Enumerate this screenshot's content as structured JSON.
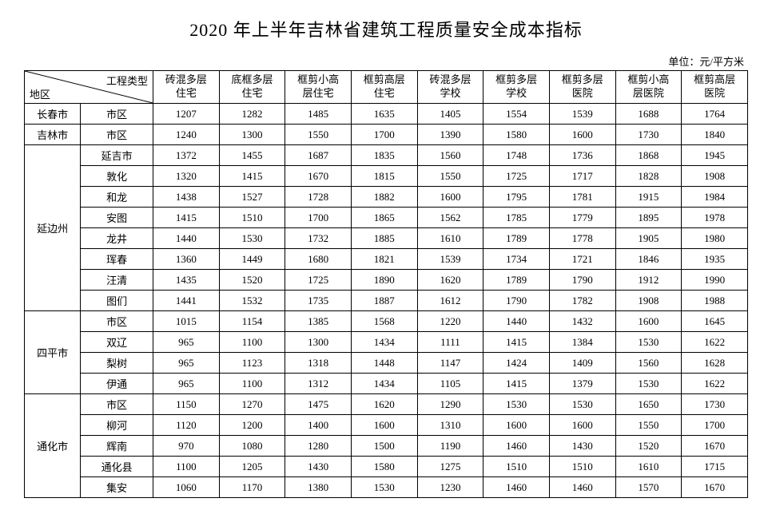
{
  "title": "2020 年上半年吉林省建筑工程质量安全成本指标",
  "unit": "单位：元/平方米",
  "diag": {
    "top": "工程类型",
    "bottom": "地区"
  },
  "columns": [
    "砖混多层\n住宅",
    "底框多层\n住宅",
    "框剪小高\n层住宅",
    "框剪高层\n住宅",
    "砖混多层\n学校",
    "框剪多层\n学校",
    "框剪多层\n医院",
    "框剪小高\n层医院",
    "框剪高层\n医院"
  ],
  "groups": [
    {
      "region": "长春市",
      "rows": [
        {
          "sub": "市区",
          "vals": [
            1207,
            1282,
            1485,
            1635,
            1405,
            1554,
            1539,
            1688,
            1764
          ]
        }
      ]
    },
    {
      "region": "吉林市",
      "rows": [
        {
          "sub": "市区",
          "vals": [
            1240,
            1300,
            1550,
            1700,
            1390,
            1580,
            1600,
            1730,
            1840
          ]
        }
      ]
    },
    {
      "region": "延边州",
      "rows": [
        {
          "sub": "延吉市",
          "vals": [
            1372,
            1455,
            1687,
            1835,
            1560,
            1748,
            1736,
            1868,
            1945
          ]
        },
        {
          "sub": "敦化",
          "vals": [
            1320,
            1415,
            1670,
            1815,
            1550,
            1725,
            1717,
            1828,
            1908
          ]
        },
        {
          "sub": "和龙",
          "vals": [
            1438,
            1527,
            1728,
            1882,
            1600,
            1795,
            1781,
            1915,
            1984
          ]
        },
        {
          "sub": "安图",
          "vals": [
            1415,
            1510,
            1700,
            1865,
            1562,
            1785,
            1779,
            1895,
            1978
          ]
        },
        {
          "sub": "龙井",
          "vals": [
            1440,
            1530,
            1732,
            1885,
            1610,
            1789,
            1778,
            1905,
            1980
          ]
        },
        {
          "sub": "珲春",
          "vals": [
            1360,
            1449,
            1680,
            1821,
            1539,
            1734,
            1721,
            1846,
            1935
          ]
        },
        {
          "sub": "汪清",
          "vals": [
            1435,
            1520,
            1725,
            1890,
            1620,
            1789,
            1790,
            1912,
            1990
          ]
        },
        {
          "sub": "图们",
          "vals": [
            1441,
            1532,
            1735,
            1887,
            1612,
            1790,
            1782,
            1908,
            1988
          ]
        }
      ]
    },
    {
      "region": "四平市",
      "rows": [
        {
          "sub": "市区",
          "vals": [
            1015,
            1154,
            1385,
            1568,
            1220,
            1440,
            1432,
            1600,
            1645
          ]
        },
        {
          "sub": "双辽",
          "vals": [
            965,
            1100,
            1300,
            1434,
            1111,
            1415,
            1384,
            1530,
            1622
          ]
        },
        {
          "sub": "梨树",
          "vals": [
            965,
            1123,
            1318,
            1448,
            1147,
            1424,
            1409,
            1560,
            1628
          ]
        },
        {
          "sub": "伊通",
          "vals": [
            965,
            1100,
            1312,
            1434,
            1105,
            1415,
            1379,
            1530,
            1622
          ]
        }
      ]
    },
    {
      "region": "通化市",
      "rows": [
        {
          "sub": "市区",
          "vals": [
            1150,
            1270,
            1475,
            1620,
            1290,
            1530,
            1530,
            1650,
            1730
          ]
        },
        {
          "sub": "柳河",
          "vals": [
            1120,
            1200,
            1400,
            1600,
            1310,
            1600,
            1600,
            1550,
            1700
          ]
        },
        {
          "sub": "辉南",
          "vals": [
            970,
            1080,
            1280,
            1500,
            1190,
            1460,
            1430,
            1520,
            1670
          ]
        },
        {
          "sub": "通化县",
          "vals": [
            1100,
            1205,
            1430,
            1580,
            1275,
            1510,
            1510,
            1610,
            1715
          ]
        },
        {
          "sub": "集安",
          "vals": [
            1060,
            1170,
            1380,
            1530,
            1230,
            1460,
            1460,
            1570,
            1670
          ]
        }
      ]
    }
  ]
}
